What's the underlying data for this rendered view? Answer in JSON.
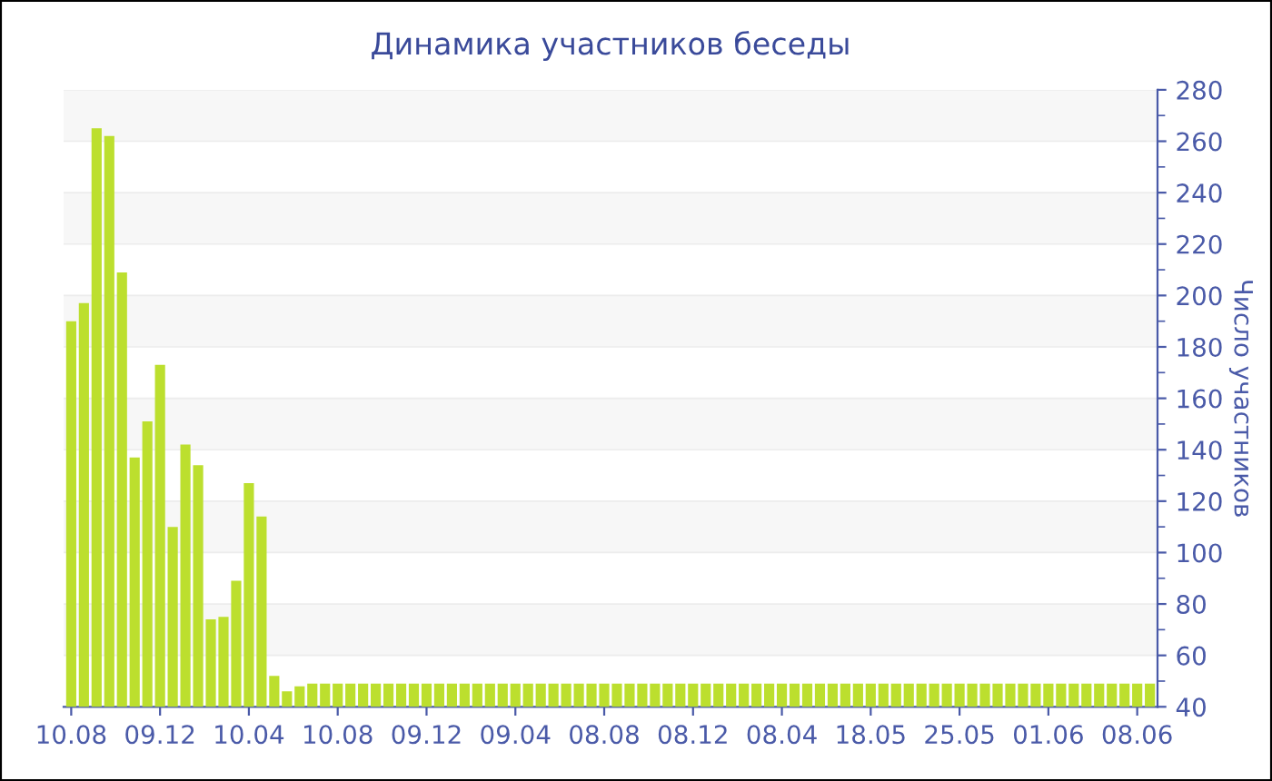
{
  "chart_data": {
    "type": "bar",
    "title": "Динамика участников беседы",
    "ylabel": "Число участников",
    "categories": [
      "10.08",
      null,
      null,
      null,
      null,
      null,
      null,
      "09.12",
      null,
      null,
      null,
      null,
      null,
      null,
      "10.04",
      null,
      null,
      null,
      null,
      null,
      null,
      "10.08",
      null,
      null,
      null,
      null,
      null,
      null,
      "09.12",
      null,
      null,
      null,
      null,
      null,
      null,
      "09.04",
      null,
      null,
      null,
      null,
      null,
      null,
      "08.08",
      null,
      null,
      null,
      null,
      null,
      null,
      "08.12",
      null,
      null,
      null,
      null,
      null,
      null,
      "08.04",
      null,
      null,
      null,
      null,
      null,
      null,
      "18.05",
      null,
      null,
      null,
      null,
      null,
      null,
      "25.05",
      null,
      null,
      null,
      null,
      null,
      null,
      "01.06",
      null,
      null,
      null,
      null,
      null,
      null,
      "08.06",
      null
    ],
    "values": [
      190,
      197,
      265,
      262,
      209,
      137,
      151,
      173,
      110,
      142,
      134,
      74,
      75,
      89,
      127,
      114,
      52,
      46,
      48,
      49,
      49,
      49,
      49,
      49,
      49,
      49,
      49,
      49,
      49,
      49,
      49,
      49,
      49,
      49,
      49,
      49,
      49,
      49,
      49,
      49,
      49,
      49,
      49,
      49,
      49,
      49,
      49,
      49,
      49,
      49,
      49,
      49,
      49,
      49,
      49,
      49,
      49,
      49,
      49,
      49,
      49,
      49,
      49,
      49,
      49,
      49,
      49,
      49,
      49,
      49,
      49,
      49,
      49,
      49,
      49,
      49,
      49,
      49,
      49,
      49,
      49,
      49,
      49,
      49,
      49,
      49
    ],
    "color": "#bcdf2e",
    "ylim": [
      40,
      280
    ],
    "yticks": [
      40,
      60,
      80,
      100,
      120,
      140,
      160,
      180,
      200,
      220,
      240,
      260,
      280
    ],
    "grid": true,
    "legend": false
  }
}
